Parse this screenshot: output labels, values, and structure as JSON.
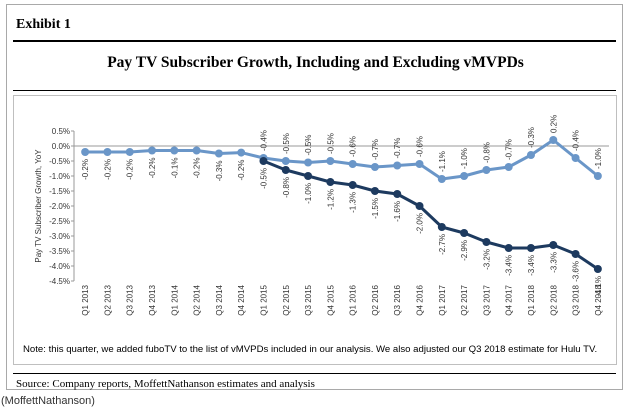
{
  "exhibit_label": "Exhibit 1",
  "note": "Note: this quarter, we added fuboTV to the list of vMVPDs included in our analysis.  We also adjusted our Q3 2018 estimate for Hulu TV.",
  "source": "Source: Company reports, MoffettNathanson estimates and analysis",
  "credit": "(MoffettNathanson)",
  "colors": {
    "including": "#6a96c8",
    "excluding": "#1d3a5f"
  },
  "chart_data": {
    "type": "line",
    "title": "Pay TV Subscriber Growth, Including and Excluding vMVPDs",
    "ylabel": "Pay TV Subscriber Growth, YoY",
    "xlabel": "",
    "ylim": [
      -4.5,
      0.5
    ],
    "yticks": [
      "0.5%",
      "0.0%",
      "-0.5%",
      "-1.0%",
      "-1.5%",
      "-2.0%",
      "-2.5%",
      "-3.0%",
      "-3.5%",
      "-4.0%",
      "-4.5%"
    ],
    "legend": "none",
    "categories": [
      "Q1 2013",
      "Q2 2013",
      "Q3 2013",
      "Q4 2013",
      "Q1 2014",
      "Q2 2014",
      "Q3 2014",
      "Q4 2014",
      "Q1 2015",
      "Q2 2015",
      "Q3 2015",
      "Q4 2015",
      "Q1 2016",
      "Q2 2016",
      "Q3 2016",
      "Q4 2016",
      "Q1 2017",
      "Q2 2017",
      "Q3 2017",
      "Q4 2017",
      "Q1 2018",
      "Q2 2018",
      "Q3 2018",
      "Q4 2018"
    ],
    "series": [
      {
        "key": "including",
        "values": [
          -0.2,
          -0.2,
          -0.2,
          -0.15,
          -0.15,
          -0.15,
          -0.25,
          -0.22,
          -0.4,
          -0.5,
          -0.55,
          -0.5,
          -0.6,
          -0.7,
          -0.65,
          -0.6,
          -1.1,
          -1.0,
          -0.8,
          -0.7,
          -0.3,
          0.2,
          -0.4,
          -1.0
        ],
        "labels": [
          "-0.2%",
          "-0.2%",
          "-0.2%",
          "-0.2%",
          "-0.1%",
          "-0.2%",
          "-0.3%",
          "-0.2%",
          "-0.4%",
          "-0.5%",
          "-0.5%",
          "-0.5%",
          "-0.6%",
          "-0.7%",
          "-0.7%",
          "-0.6%",
          "-1.1%",
          "-1.0%",
          "-0.8%",
          "-0.7%",
          "-0.3%",
          "0.2%",
          "-0.4%",
          "-1.0%"
        ]
      },
      {
        "key": "excluding",
        "values": [
          null,
          null,
          null,
          null,
          null,
          null,
          null,
          null,
          -0.5,
          -0.8,
          -1.0,
          -1.2,
          -1.3,
          -1.5,
          -1.6,
          -2.0,
          -2.7,
          -2.9,
          -3.2,
          -3.4,
          -3.4,
          -3.3,
          -3.6,
          -4.1
        ],
        "labels": [
          null,
          null,
          null,
          null,
          null,
          null,
          null,
          null,
          "-0.5%",
          "-0.8%",
          "-1.0%",
          "-1.2%",
          "-1.3%",
          "-1.5%",
          "-1.6%",
          "-2.0%",
          "-2.7%",
          "-2.9%",
          "-3.2%",
          "-3.4%",
          "-3.4%",
          "-3.3%",
          "-3.6%",
          "-4.1%"
        ]
      }
    ]
  }
}
